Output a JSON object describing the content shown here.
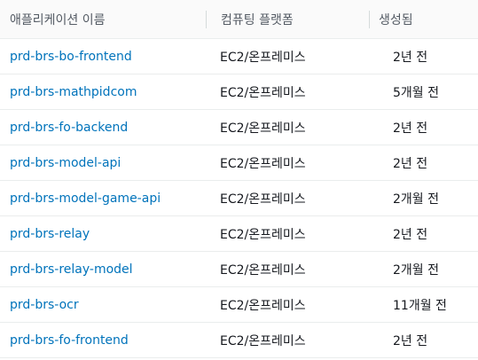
{
  "table": {
    "headers": {
      "app_name": "애플리케이션 이름",
      "platform": "컴퓨팅 플랫폼",
      "created": "생성됨"
    },
    "rows": [
      {
        "name": "prd-brs-bo-frontend",
        "platform": "EC2/온프레미스",
        "created": "2년 전"
      },
      {
        "name": "prd-brs-mathpidcom",
        "platform": "EC2/온프레미스",
        "created": "5개월 전"
      },
      {
        "name": "prd-brs-fo-backend",
        "platform": "EC2/온프레미스",
        "created": "2년 전"
      },
      {
        "name": "prd-brs-model-api",
        "platform": "EC2/온프레미스",
        "created": "2년 전"
      },
      {
        "name": "prd-brs-model-game-api",
        "platform": "EC2/온프레미스",
        "created": "2개월 전"
      },
      {
        "name": "prd-brs-relay",
        "platform": "EC2/온프레미스",
        "created": "2년 전"
      },
      {
        "name": "prd-brs-relay-model",
        "platform": "EC2/온프레미스",
        "created": "2개월 전"
      },
      {
        "name": "prd-brs-ocr",
        "platform": "EC2/온프레미스",
        "created": "11개월 전"
      },
      {
        "name": "prd-brs-fo-frontend",
        "platform": "EC2/온프레미스",
        "created": "2년 전"
      }
    ]
  },
  "colors": {
    "link": "#0073bb",
    "header_bg": "#fafafa",
    "header_text": "#545b64",
    "divider": "#eaeded"
  }
}
